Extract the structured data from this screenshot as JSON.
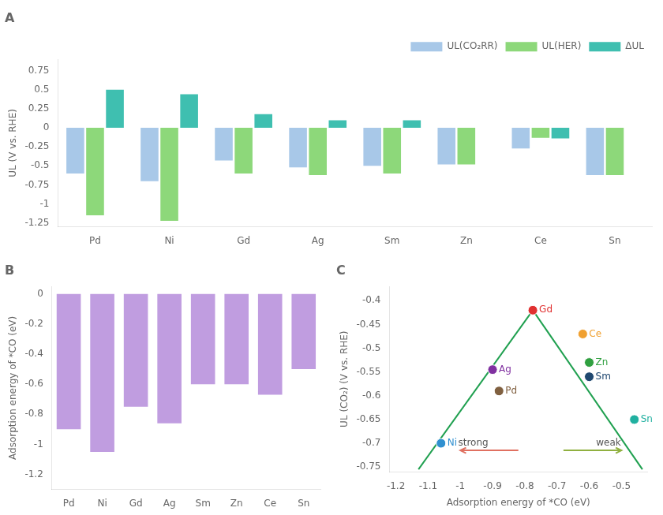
{
  "chart_data": [
    {
      "type": "bar",
      "title": "A",
      "ylabel": "UL (V vs. RHE)",
      "categories": [
        "Pd",
        "Ni",
        "Gd",
        "Ag",
        "Sm",
        "Zn",
        "Ce",
        "Sn"
      ],
      "series": [
        {
          "name": "UL(CO₂RR)",
          "color": "#a8c8e8",
          "values": [
            -0.6,
            -0.7,
            -0.43,
            -0.52,
            -0.5,
            -0.48,
            -0.27,
            -0.62
          ]
        },
        {
          "name": "UL(HER)",
          "color": "#8dd87a",
          "values": [
            -1.15,
            -1.22,
            -0.6,
            -0.62,
            -0.6,
            -0.48,
            -0.13,
            -0.62
          ]
        },
        {
          "name": "ΔUL",
          "color": "#3fbfb0",
          "values": [
            0.5,
            0.44,
            0.18,
            0.1,
            0.1,
            0.0,
            -0.14,
            0.0
          ]
        }
      ],
      "ylim": [
        -1.3,
        0.9
      ],
      "yticks": [
        -1.25,
        -1,
        -0.75,
        -0.5,
        -0.25,
        0,
        0.25,
        0.5,
        0.75
      ],
      "grid": false,
      "legend": "upper right"
    },
    {
      "type": "bar",
      "title": "B",
      "ylabel": "Adsorption energy of *CO (eV)",
      "categories": [
        "Pd",
        "Ni",
        "Gd",
        "Ag",
        "Sm",
        "Zn",
        "Ce",
        "Sn"
      ],
      "values": [
        -0.9,
        -1.05,
        -0.75,
        -0.86,
        -0.6,
        -0.6,
        -0.67,
        -0.5
      ],
      "color": "#c09de0",
      "ylim": [
        -1.3,
        0.05
      ],
      "yticks": [
        -1.2,
        -1,
        -0.8,
        -0.6,
        -0.4,
        -0.2,
        0
      ],
      "grid": false
    },
    {
      "type": "scatter",
      "title": "C",
      "xlabel": "Adsorption energy of *CO (eV)",
      "ylabel": "UL (CO₂) (V vs. RHE)",
      "series": [
        {
          "type": "line",
          "color": "#20a050",
          "x": [
            -1.13,
            -0.775
          ],
          "values": [
            -0.755,
            -0.42
          ]
        },
        {
          "type": "line",
          "color": "#20a050",
          "x": [
            -0.775,
            -0.435
          ],
          "values": [
            -0.42,
            -0.755
          ]
        },
        {
          "type": "scatter",
          "x": [
            -0.775,
            -0.62,
            -0.6,
            -0.6,
            -0.88,
            -0.9,
            -0.46,
            -1.06
          ],
          "values": [
            -0.42,
            -0.47,
            -0.53,
            -0.56,
            -0.59,
            -0.545,
            -0.65,
            -0.7
          ],
          "labels": [
            "Gd",
            "Ce",
            "Zn",
            "Sm",
            "Pd",
            "Ag",
            "Sn",
            "Ni"
          ],
          "colors": [
            "#e03030",
            "#f0a030",
            "#30a040",
            "#204870",
            "#806040",
            "#8030a0",
            "#20b0a0",
            "#3090d0"
          ]
        }
      ],
      "xlim": [
        -1.22,
        -0.42
      ],
      "xticks": [
        -1.2,
        -1.1,
        -1,
        -0.9,
        -0.8,
        -0.7,
        -0.6,
        -0.5
      ],
      "ylim": [
        -0.76,
        -0.37
      ],
      "yticks": [
        -0.75,
        -0.7,
        -0.65,
        -0.6,
        -0.55,
        -0.5,
        -0.45,
        -0.4
      ],
      "grid": false,
      "arrows": [
        {
          "from": [
            -0.82,
            -0.715
          ],
          "to": [
            -1.0,
            -0.715
          ],
          "color": "#e07060"
        },
        {
          "from": [
            -0.68,
            -0.715
          ],
          "to": [
            -0.5,
            -0.715
          ],
          "color": "#90b040"
        }
      ],
      "annotations": [
        {
          "text": "strong",
          "x": -0.96,
          "y": -0.715,
          "color": "#555555"
        },
        {
          "text": "weak",
          "x": -0.54,
          "y": -0.715,
          "color": "#555555"
        }
      ]
    }
  ]
}
